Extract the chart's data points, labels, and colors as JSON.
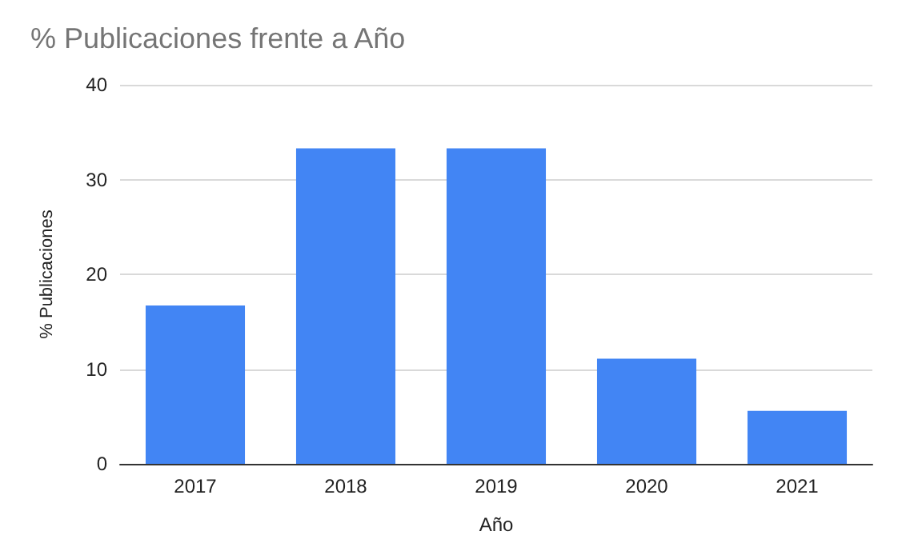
{
  "chart_data": {
    "type": "bar",
    "title": "% Publicaciones frente a Año",
    "xlabel": "Año",
    "ylabel": "% Publicaciones",
    "categories": [
      "2017",
      "2018",
      "2019",
      "2020",
      "2021"
    ],
    "values": [
      16.7,
      33.3,
      33.3,
      11.1,
      5.6
    ],
    "color": "#4285f4",
    "ylim": [
      0,
      40
    ],
    "yticks": [
      0,
      10,
      20,
      30,
      40
    ],
    "grid": "y"
  }
}
